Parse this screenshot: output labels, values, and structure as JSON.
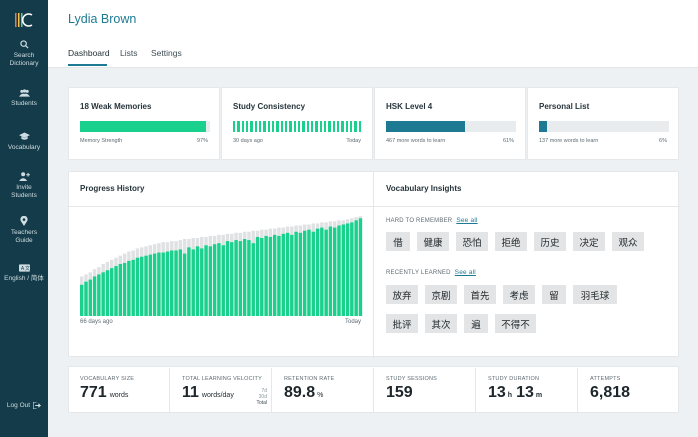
{
  "sidebar": {
    "items": [
      {
        "label1": "Search",
        "label2": "Dictionary"
      },
      {
        "label1": "Students",
        "label2": ""
      },
      {
        "label1": "Vocabulary",
        "label2": ""
      },
      {
        "label1": "Invite",
        "label2": "Students"
      },
      {
        "label1": "Teachers",
        "label2": "Guide"
      },
      {
        "label1": "English / 简体",
        "label2": ""
      }
    ],
    "logout": "Log Out"
  },
  "header": {
    "user_name": "Lydia Brown",
    "tabs": [
      "Dashboard",
      "Lists",
      "Settings"
    ]
  },
  "cards": {
    "weak_memories": {
      "title": "18 Weak Memories",
      "caption_left": "Memory Strength",
      "caption_right": "97%",
      "progress": 0.97
    },
    "consistency": {
      "title": "Study Consistency",
      "caption_left": "30 days ago",
      "caption_right": "Today"
    },
    "hsk": {
      "title": "HSK Level 4",
      "caption_left": "467 more words to learn",
      "caption_right": "61%",
      "progress": 0.61
    },
    "personal": {
      "title": "Personal List",
      "caption_left": "137 more words to learn",
      "caption_right": "6%",
      "progress": 0.06
    }
  },
  "progress_history": {
    "title": "Progress History",
    "x_start": "66 days ago",
    "x_end": "Today"
  },
  "chart_data": {
    "type": "bar",
    "title": "Progress History",
    "x_labels": [
      "66 days ago",
      "Today"
    ],
    "series": [
      {
        "values": [
          38,
          40,
          42,
          45,
          47,
          50,
          52,
          54,
          56,
          58,
          60,
          62,
          63,
          65,
          66,
          67,
          68,
          69,
          70,
          71,
          71,
          72,
          72,
          73,
          74,
          74,
          75,
          75,
          76,
          76,
          77,
          77,
          78,
          78,
          79,
          79,
          80,
          80,
          81,
          81,
          82,
          82,
          83,
          83,
          84,
          84,
          85,
          85,
          86,
          86,
          87,
          87,
          88,
          88,
          89,
          89,
          90,
          90,
          91,
          91,
          92,
          92,
          93,
          94,
          95,
          96
        ]
      },
      {
        "values": [
          30,
          33,
          35,
          38,
          40,
          42,
          44,
          46,
          48,
          50,
          51,
          53,
          54,
          56,
          57,
          58,
          59,
          60,
          61,
          61,
          62,
          63,
          63,
          64,
          60,
          66,
          64,
          67,
          65,
          68,
          67,
          69,
          70,
          68,
          72,
          71,
          73,
          72,
          74,
          73,
          70,
          76,
          75,
          77,
          76,
          78,
          77,
          79,
          80,
          78,
          81,
          80,
          82,
          83,
          81,
          84,
          85,
          83,
          86,
          85,
          87,
          88,
          89,
          90,
          92,
          94
        ]
      }
    ]
  },
  "insights": {
    "title": "Vocabulary Insights",
    "hard_label": "HARD TO REMEMBER",
    "see_all": "See all",
    "hard_words": [
      "借",
      "健康",
      "恐怕",
      "拒绝",
      "历史",
      "决定",
      "观众"
    ],
    "recent_label": "RECENTLY LEARNED",
    "recent_words": [
      "放弃",
      "京剧",
      "首先",
      "考虑",
      "留",
      "羽毛球",
      "批评",
      "其次",
      "遍",
      "不得不"
    ]
  },
  "stats": {
    "vocab": {
      "label": "VOCABULARY SIZE",
      "value": "771",
      "unit": "words"
    },
    "velocity": {
      "label": "TOTAL LEARNING VELOCITY",
      "value": "11",
      "unit": "words/day",
      "opt_7d": "7d",
      "opt_30d": "30d",
      "opt_total": "Total"
    },
    "retention": {
      "label": "RETENTION RATE",
      "value": "89.8",
      "unit": "%"
    },
    "sessions": {
      "label": "STUDY SESSIONS",
      "value": "159"
    },
    "duration": {
      "label": "STUDY DURATION",
      "hours": "13",
      "h_unit": "h",
      "minutes": "13",
      "m_unit": "m"
    },
    "attempts": {
      "label": "ATTEMPTS",
      "value": "6,818"
    }
  },
  "colors": {
    "accent": "#1e7a92",
    "green": "#19d18c",
    "sidebar": "#143b49",
    "grey_bar": "#dfe1e3"
  }
}
